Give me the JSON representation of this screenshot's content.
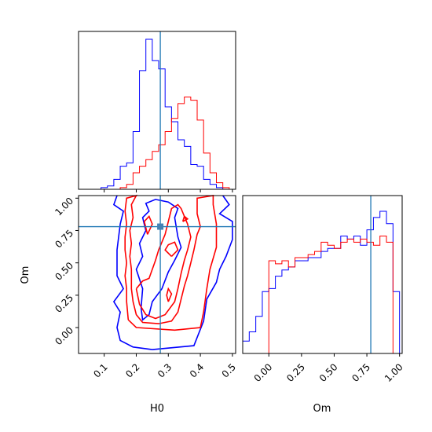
{
  "chart_data": {
    "type": "corner",
    "parameters": [
      "H0",
      "Om"
    ],
    "truth": {
      "H0": 0.275,
      "Om": 0.78
    },
    "colors": {
      "blue": "#0000ff",
      "red": "#ff0000",
      "truth": "#1f77b4"
    },
    "xlabels": {
      "h0": "H0",
      "om": "Om"
    },
    "ylabels": {
      "om": "Om"
    },
    "h0_ticks": [
      {
        "value": 0.1,
        "label": "0.1"
      },
      {
        "value": 0.2,
        "label": "0.2"
      },
      {
        "value": 0.3,
        "label": "0.3"
      },
      {
        "value": 0.4,
        "label": "0.4"
      },
      {
        "value": 0.5,
        "label": "0.5"
      }
    ],
    "om_ticks": [
      {
        "value": 0.0,
        "label": "0.00"
      },
      {
        "value": 0.25,
        "label": "0.25"
      },
      {
        "value": 0.5,
        "label": "0.50"
      },
      {
        "value": 0.75,
        "label": "0.75"
      },
      {
        "value": 1.0,
        "label": "1.00"
      }
    ],
    "h0_range": [
      0.02,
      0.51
    ],
    "om_range": [
      -0.2,
      1.02
    ],
    "hist_h0": {
      "edges": [
        0.09,
        0.11,
        0.13,
        0.15,
        0.17,
        0.19,
        0.21,
        0.23,
        0.25,
        0.27,
        0.29,
        0.31,
        0.33,
        0.35,
        0.37,
        0.39,
        0.41,
        0.43,
        0.45,
        0.47,
        0.49
      ],
      "blue": [
        1,
        2,
        6,
        14,
        16,
        35,
        72,
        91,
        78,
        73,
        50,
        41,
        30,
        26,
        15,
        14,
        6,
        3,
        1,
        0
      ],
      "red": [
        0,
        0,
        0,
        1,
        3,
        10,
        14,
        18,
        23,
        27,
        35,
        43,
        52,
        56,
        54,
        42,
        22,
        10,
        4,
        1
      ]
    },
    "hist_om": {
      "edges": [
        -0.2,
        -0.15,
        -0.1,
        -0.05,
        0.0,
        0.05,
        0.1,
        0.15,
        0.2,
        0.25,
        0.3,
        0.35,
        0.4,
        0.45,
        0.5,
        0.55,
        0.6,
        0.65,
        0.7,
        0.75,
        0.8,
        0.85,
        0.9,
        0.95,
        1.0
      ],
      "blue": [
        4,
        7,
        12,
        20,
        21,
        25,
        27,
        28,
        30,
        30,
        31,
        31,
        33,
        34,
        34,
        38,
        37,
        38,
        35,
        40,
        44,
        46,
        42,
        20
      ],
      "red": [
        0,
        0,
        0,
        0,
        30,
        29,
        30,
        28,
        31,
        31,
        32,
        33,
        36,
        35,
        34,
        36,
        37,
        36,
        37,
        36,
        35,
        38,
        36,
        0
      ]
    },
    "contours": [
      {
        "series": "blue",
        "level": "outer",
        "points": [
          [
            0.25,
            -0.17
          ],
          [
            0.38,
            -0.14
          ],
          [
            0.41,
            0.05
          ],
          [
            0.42,
            0.22
          ],
          [
            0.45,
            0.35
          ],
          [
            0.46,
            0.45
          ],
          [
            0.48,
            0.55
          ],
          [
            0.5,
            0.68
          ],
          [
            0.5,
            0.82
          ],
          [
            0.46,
            0.88
          ],
          [
            0.49,
            0.95
          ],
          [
            0.47,
            1.02
          ]
        ]
      },
      {
        "series": "blue",
        "level": "outer",
        "points": [
          [
            0.14,
            1.02
          ],
          [
            0.13,
            0.95
          ],
          [
            0.16,
            0.9
          ],
          [
            0.15,
            0.8
          ],
          [
            0.14,
            0.6
          ],
          [
            0.14,
            0.4
          ],
          [
            0.16,
            0.3
          ],
          [
            0.13,
            0.2
          ],
          [
            0.15,
            0.12
          ],
          [
            0.14,
            0.0
          ],
          [
            0.15,
            -0.1
          ],
          [
            0.19,
            -0.15
          ],
          [
            0.25,
            -0.17
          ]
        ]
      },
      {
        "series": "blue",
        "level": "inner",
        "points": [
          [
            0.215,
            0.15
          ],
          [
            0.22,
            0.3
          ],
          [
            0.2,
            0.45
          ],
          [
            0.22,
            0.55
          ],
          [
            0.21,
            0.65
          ],
          [
            0.23,
            0.75
          ],
          [
            0.22,
            0.85
          ],
          [
            0.24,
            0.9
          ],
          [
            0.23,
            0.96
          ],
          [
            0.26,
            0.99
          ],
          [
            0.3,
            0.97
          ],
          [
            0.33,
            0.92
          ],
          [
            0.32,
            0.85
          ],
          [
            0.33,
            0.7
          ],
          [
            0.34,
            0.62
          ],
          [
            0.32,
            0.52
          ],
          [
            0.3,
            0.43
          ],
          [
            0.28,
            0.3
          ],
          [
            0.25,
            0.2
          ],
          [
            0.24,
            0.1
          ],
          [
            0.22,
            0.06
          ],
          [
            0.215,
            0.15
          ]
        ]
      },
      {
        "series": "red",
        "level": "outer",
        "points": [
          [
            0.175,
            0.06
          ],
          [
            0.2,
            0.0
          ],
          [
            0.32,
            -0.02
          ],
          [
            0.4,
            0.0
          ],
          [
            0.41,
            0.12
          ],
          [
            0.42,
            0.3
          ],
          [
            0.43,
            0.45
          ],
          [
            0.45,
            0.62
          ],
          [
            0.45,
            0.8
          ],
          [
            0.44,
            0.95
          ],
          [
            0.44,
            1.02
          ],
          [
            0.39,
            1.0
          ],
          [
            0.39,
            0.88
          ],
          [
            0.4,
            0.78
          ],
          [
            0.39,
            0.72
          ],
          [
            0.38,
            0.6
          ],
          [
            0.37,
            0.5
          ],
          [
            0.36,
            0.4
          ],
          [
            0.35,
            0.32
          ],
          [
            0.34,
            0.22
          ],
          [
            0.33,
            0.12
          ],
          [
            0.31,
            0.05
          ],
          [
            0.27,
            0.03
          ],
          [
            0.22,
            0.04
          ],
          [
            0.2,
            0.1
          ],
          [
            0.19,
            0.2
          ],
          [
            0.185,
            0.3
          ],
          [
            0.185,
            0.45
          ],
          [
            0.18,
            0.55
          ],
          [
            0.185,
            0.65
          ],
          [
            0.18,
            0.75
          ],
          [
            0.19,
            0.85
          ],
          [
            0.185,
            0.95
          ],
          [
            0.2,
            1.02
          ],
          [
            0.17,
            1.0
          ],
          [
            0.165,
            0.9
          ],
          [
            0.17,
            0.8
          ],
          [
            0.165,
            0.7
          ],
          [
            0.165,
            0.6
          ],
          [
            0.17,
            0.5
          ],
          [
            0.165,
            0.4
          ],
          [
            0.17,
            0.3
          ],
          [
            0.17,
            0.2
          ],
          [
            0.175,
            0.06
          ]
        ]
      },
      {
        "series": "red",
        "level": "inner",
        "points": [
          [
            0.2,
            0.3
          ],
          [
            0.21,
            0.18
          ],
          [
            0.23,
            0.1
          ],
          [
            0.26,
            0.07
          ],
          [
            0.29,
            0.1
          ],
          [
            0.32,
            0.2
          ],
          [
            0.33,
            0.3
          ],
          [
            0.34,
            0.42
          ],
          [
            0.35,
            0.52
          ],
          [
            0.36,
            0.6
          ],
          [
            0.37,
            0.7
          ],
          [
            0.36,
            0.8
          ],
          [
            0.35,
            0.86
          ],
          [
            0.34,
            0.92
          ],
          [
            0.33,
            0.95
          ],
          [
            0.31,
            0.92
          ],
          [
            0.3,
            0.82
          ],
          [
            0.29,
            0.72
          ],
          [
            0.28,
            0.66
          ],
          [
            0.27,
            0.6
          ],
          [
            0.26,
            0.52
          ],
          [
            0.25,
            0.45
          ],
          [
            0.24,
            0.38
          ],
          [
            0.22,
            0.36
          ],
          [
            0.2,
            0.3
          ]
        ]
      },
      {
        "series": "red",
        "level": "island",
        "points": [
          [
            0.31,
            0.55
          ],
          [
            0.33,
            0.6
          ],
          [
            0.32,
            0.66
          ],
          [
            0.3,
            0.64
          ],
          [
            0.29,
            0.6
          ],
          [
            0.31,
            0.55
          ]
        ]
      },
      {
        "series": "red",
        "level": "island",
        "points": [
          [
            0.235,
            0.72
          ],
          [
            0.25,
            0.8
          ],
          [
            0.24,
            0.86
          ],
          [
            0.225,
            0.82
          ],
          [
            0.235,
            0.72
          ]
        ]
      },
      {
        "series": "red",
        "level": "island",
        "points": [
          [
            0.3,
            0.2
          ],
          [
            0.31,
            0.26
          ],
          [
            0.3,
            0.3
          ],
          [
            0.295,
            0.25
          ],
          [
            0.3,
            0.2
          ]
        ]
      },
      {
        "series": "red",
        "level": "island",
        "points": [
          [
            0.345,
            0.82
          ],
          [
            0.36,
            0.84
          ],
          [
            0.35,
            0.86
          ],
          [
            0.345,
            0.82
          ]
        ]
      }
    ]
  }
}
